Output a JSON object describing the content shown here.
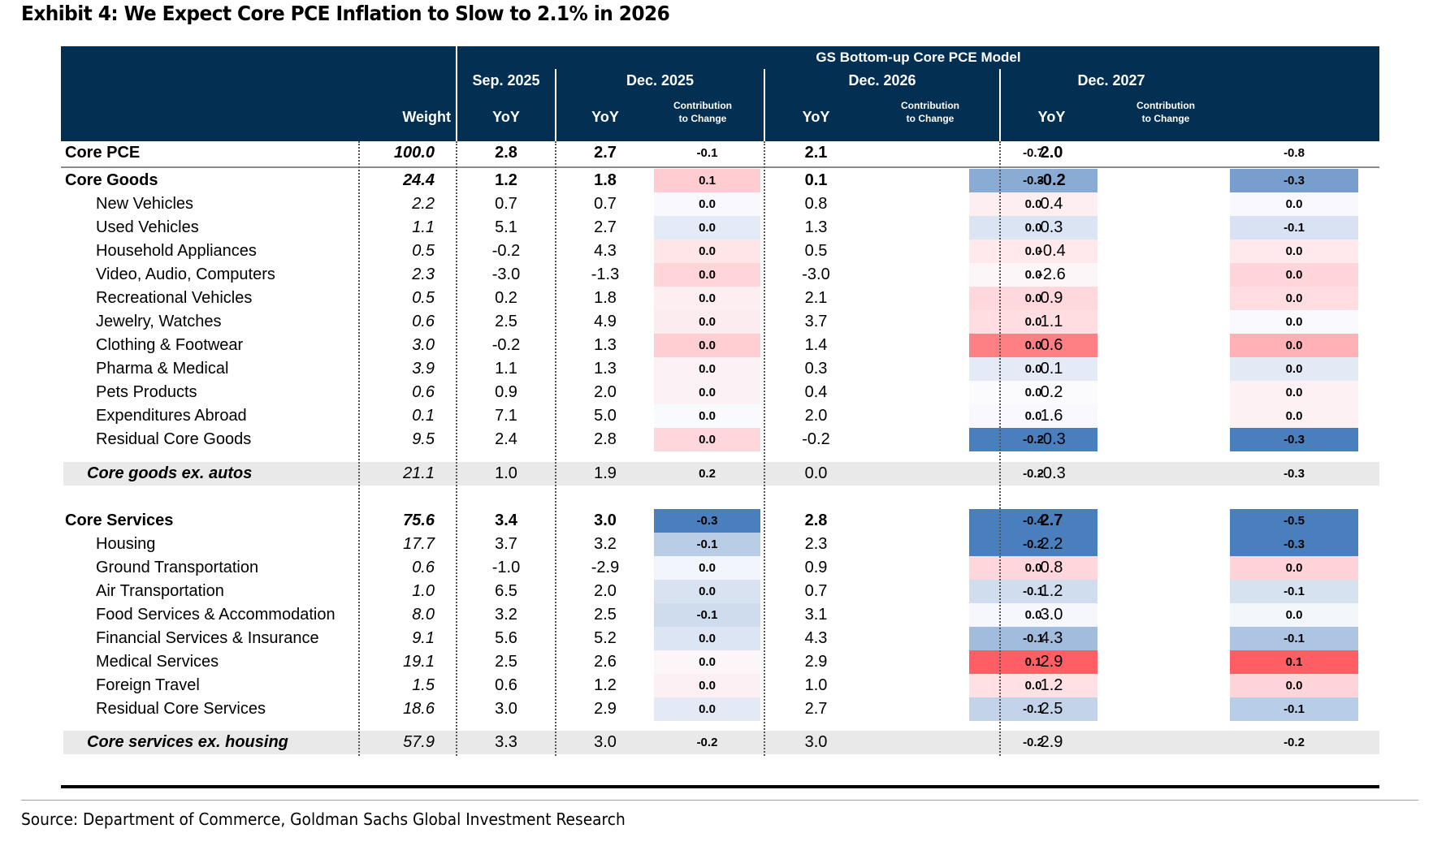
{
  "title": "Exhibit 4: We Expect Core PCE Inflation to Slow to 2.1% in 2026",
  "source": "Source: Department of Commerce, Goldman Sachs Global Investment Research",
  "chart_data": {
    "type": "table",
    "title": "Exhibit 4: We Expect Core PCE Inflation to Slow to 2.1% in 2026",
    "model_header": "GS Bottom-up Core PCE Model",
    "column_groups": [
      "Sep. 2025",
      "Dec. 2025",
      "Dec. 2026",
      "Dec. 2027"
    ],
    "columns": [
      "Weight",
      "Sep. 2025 YoY",
      "Dec. 2025 YoY",
      "Dec. 2025 Contribution to Change",
      "Dec. 2026 YoY",
      "Dec. 2026 Contribution to Change",
      "Dec. 2027 YoY",
      "Dec. 2027 Contribution to Change"
    ],
    "header_labels": {
      "weight": "Weight",
      "yoy": "YoY",
      "contrib_1": "Contribution",
      "contrib_2": "to Change"
    },
    "color_scale": {
      "negative": "#4a7fbe",
      "neutral": "#ffffff",
      "positive": "#ff5f64"
    },
    "rows": [
      {
        "label": "Core PCE",
        "kind": "total",
        "weight": "100.0",
        "sep25": "2.8",
        "dec25": "2.7",
        "c25": "-0.1",
        "dec26": "2.1",
        "c26": "-0.7",
        "dec27": "2.0",
        "c27": "-0.8"
      },
      {
        "label": "Core Goods",
        "kind": "group",
        "weight": "24.4",
        "sep25": "1.2",
        "dec25": "1.8",
        "c25": "0.1",
        "dec26": "0.1",
        "c26": "-0.3",
        "dec27": "-0.2",
        "c27": "-0.3",
        "col25": "#ffccd1",
        "col26": "#8aabd4",
        "col27": "#779ecd"
      },
      {
        "label": "New Vehicles",
        "kind": "item",
        "weight": "2.2",
        "sep25": "0.7",
        "dec25": "0.7",
        "c25": "0.0",
        "dec26": "0.8",
        "c26": "0.0",
        "dec27": "0.4",
        "c27": "0.0",
        "col25": "#f8f8fe",
        "col26": "#fdeef1",
        "col27": "#f8f8fe"
      },
      {
        "label": "Used Vehicles",
        "kind": "item",
        "weight": "1.1",
        "sep25": "5.1",
        "dec25": "2.7",
        "c25": "0.0",
        "dec26": "1.3",
        "c26": "0.0",
        "dec27": "0.3",
        "c27": "-0.1",
        "col25": "#e4eaf6",
        "col26": "#dbe4f2",
        "col27": "#d9e2f2"
      },
      {
        "label": "Household Appliances",
        "kind": "item",
        "weight": "0.5",
        "sep25": "-0.2",
        "dec25": "4.3",
        "c25": "0.0",
        "dec26": "0.5",
        "c26": "0.0",
        "dec27": "-0.4",
        "c27": "0.0",
        "col25": "#ffe4e8",
        "col26": "#ffe9ec",
        "col27": "#ffe9ec"
      },
      {
        "label": "Video, Audio, Computers",
        "kind": "item",
        "weight": "2.3",
        "sep25": "-3.0",
        "dec25": "-1.3",
        "c25": "0.0",
        "dec26": "-3.0",
        "c26": "0.0",
        "dec27": "-2.6",
        "c27": "0.0",
        "col25": "#ffd5da",
        "col26": "#fdf6f9",
        "col27": "#ffd5d9"
      },
      {
        "label": "Recreational Vehicles",
        "kind": "item",
        "weight": "0.5",
        "sep25": "0.2",
        "dec25": "1.8",
        "c25": "0.0",
        "dec26": "2.1",
        "c26": "0.0",
        "dec27": "0.9",
        "c27": "0.0",
        "col25": "#fdeef1",
        "col26": "#ffd8dd",
        "col27": "#ffdde1"
      },
      {
        "label": "Jewelry, Watches",
        "kind": "item",
        "weight": "0.6",
        "sep25": "2.5",
        "dec25": "4.9",
        "c25": "0.0",
        "dec26": "3.7",
        "c26": "0.0",
        "dec27": "1.1",
        "c27": "0.0",
        "col25": "#fdecef",
        "col26": "#ffdde1",
        "col27": "#fafafe"
      },
      {
        "label": "Clothing & Footwear",
        "kind": "item",
        "weight": "3.0",
        "sep25": "-0.2",
        "dec25": "1.3",
        "c25": "0.0",
        "dec26": "1.4",
        "c26": "0.0",
        "dec27": "0.6",
        "c27": "0.0",
        "col25": "#ffced3",
        "col26": "#ff8084",
        "col27": "#ffb1b5"
      },
      {
        "label": "Pharma & Medical",
        "kind": "item",
        "weight": "3.9",
        "sep25": "1.1",
        "dec25": "1.3",
        "c25": "0.0",
        "dec26": "0.3",
        "c26": "0.0",
        "dec27": "0.1",
        "c27": "0.0",
        "col25": "#fcf1f4",
        "col26": "#e4eaf6",
        "col27": "#e3e9f5"
      },
      {
        "label": "Pets Products",
        "kind": "item",
        "weight": "0.6",
        "sep25": "0.9",
        "dec25": "2.0",
        "c25": "0.0",
        "dec26": "0.4",
        "c26": "0.0",
        "dec27": "0.2",
        "c27": "0.0",
        "col25": "#fcf2f5",
        "col26": "#fbfbfe",
        "col27": "#fdf1f4"
      },
      {
        "label": "Expenditures Abroad",
        "kind": "item",
        "weight": "0.1",
        "sep25": "7.1",
        "dec25": "5.0",
        "c25": "0.0",
        "dec26": "2.0",
        "c26": "0.0",
        "dec27": "1.6",
        "c27": "0.0",
        "col25": "#f9fafe",
        "col26": "#f8f8fe",
        "col27": "#fdf1f4"
      },
      {
        "label": "Residual Core Goods",
        "kind": "item",
        "weight": "9.5",
        "sep25": "2.4",
        "dec25": "2.8",
        "c25": "0.0",
        "dec26": "-0.2",
        "c26": "-0.2",
        "dec27": "-0.3",
        "c27": "-0.3",
        "col25": "#ffd6db",
        "col26": "#4a7fbe",
        "col27": "#4a7fbe"
      },
      {
        "label": "Core goods ex. autos",
        "kind": "sub",
        "weight": "21.1",
        "sep25": "1.0",
        "dec25": "1.9",
        "c25": "0.2",
        "dec26": "0.0",
        "c26": "-0.2",
        "dec27": "-0.3",
        "c27": "-0.3"
      },
      {
        "label": "Core Services",
        "kind": "group",
        "weight": "75.6",
        "sep25": "3.4",
        "dec25": "3.0",
        "c25": "-0.3",
        "dec26": "2.8",
        "c26": "-0.4",
        "dec27": "2.7",
        "c27": "-0.5",
        "col25": "#4a7fbe",
        "col26": "#4a7fbe",
        "col27": "#4a7fbe"
      },
      {
        "label": "Housing",
        "kind": "item",
        "weight": "17.7",
        "sep25": "3.7",
        "dec25": "3.2",
        "c25": "-0.1",
        "dec26": "2.3",
        "c26": "-0.2",
        "dec27": "2.2",
        "c27": "-0.3",
        "col25": "#b9cde7",
        "col26": "#4a7fbe",
        "col27": "#4a7fbe"
      },
      {
        "label": "Ground Transportation",
        "kind": "item",
        "weight": "0.6",
        "sep25": "-1.0",
        "dec25": "-2.9",
        "c25": "0.0",
        "dec26": "0.9",
        "c26": "0.0",
        "dec27": "0.8",
        "c27": "0.0",
        "col25": "#f2f5fb",
        "col26": "#ffd6db",
        "col27": "#ffd3d8"
      },
      {
        "label": "Air Transportation",
        "kind": "item",
        "weight": "1.0",
        "sep25": "6.5",
        "dec25": "2.0",
        "c25": "0.0",
        "dec26": "0.7",
        "c26": "-0.1",
        "dec27": "1.2",
        "c27": "-0.1",
        "col25": "#d8e2f1",
        "col26": "#d0ddef",
        "col27": "#d7e2f1"
      },
      {
        "label": "Food Services & Accommodation",
        "kind": "item",
        "weight": "8.0",
        "sep25": "3.2",
        "dec25": "2.5",
        "c25": "-0.1",
        "dec26": "3.1",
        "c26": "0.0",
        "dec27": "3.0",
        "c27": "0.0",
        "col25": "#cfdcee",
        "col26": "#f5f7fc",
        "col27": "#f3f6fb"
      },
      {
        "label": "Financial Services & Insurance",
        "kind": "item",
        "weight": "9.1",
        "sep25": "5.6",
        "dec25": "5.2",
        "c25": "0.0",
        "dec26": "4.3",
        "c26": "-0.1",
        "dec27": "4.3",
        "c27": "-0.1",
        "col25": "#dce5f3",
        "col26": "#a1bcdd",
        "col27": "#adc4e2"
      },
      {
        "label": "Medical Services",
        "kind": "item",
        "weight": "19.1",
        "sep25": "2.5",
        "dec25": "2.6",
        "c25": "0.0",
        "dec26": "2.9",
        "c26": "0.1",
        "dec27": "2.9",
        "c27": "0.1",
        "col25": "#fdf6f9",
        "col26": "#ff5f64",
        "col27": "#ff5f64"
      },
      {
        "label": "Foreign Travel",
        "kind": "item",
        "weight": "1.5",
        "sep25": "0.6",
        "dec25": "1.2",
        "c25": "0.0",
        "dec26": "1.0",
        "c26": "0.0",
        "dec27": "1.2",
        "c27": "0.0",
        "col25": "#fcf0f4",
        "col26": "#ffe0e4",
        "col27": "#ffd4d9"
      },
      {
        "label": "Residual Core Services",
        "kind": "item",
        "weight": "18.6",
        "sep25": "3.0",
        "dec25": "2.9",
        "c25": "0.0",
        "dec26": "2.7",
        "c26": "-0.1",
        "dec27": "2.5",
        "c27": "-0.1",
        "col25": "#e3e9f5",
        "col26": "#c3d4ea",
        "col27": "#b8cde7"
      },
      {
        "label": "Core services ex. housing",
        "kind": "sub",
        "weight": "57.9",
        "sep25": "3.3",
        "dec25": "3.0",
        "c25": "-0.2",
        "dec26": "3.0",
        "c26": "-0.2",
        "dec27": "2.9",
        "c27": "-0.2"
      }
    ]
  }
}
